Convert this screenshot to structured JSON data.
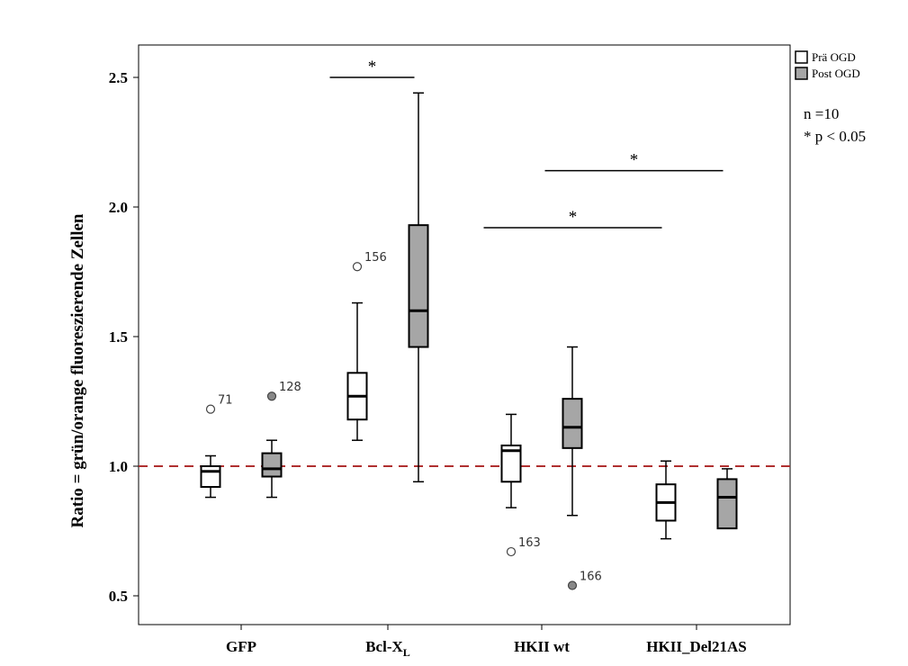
{
  "chart_data": {
    "type": "boxplot",
    "ylabel": "Ratio = grün/orange fluoreszierende Zellen",
    "y_ticks": [
      0.5,
      1.0,
      1.5,
      2.0,
      2.5
    ],
    "y_tick_labels": [
      "0.5",
      "1.0",
      "1.5",
      "2.0",
      "2.5"
    ],
    "ylim": [
      0.4,
      2.62
    ],
    "reference_line": {
      "y": 1.0,
      "color": "#b03030",
      "style": "dashed"
    },
    "categories": [
      {
        "label": "GFP",
        "subscript": ""
      },
      {
        "label": "Bcl-X",
        "subscript": "L"
      },
      {
        "label": "HKII wt",
        "subscript": ""
      },
      {
        "label": "HKII_Del21AS",
        "subscript": ""
      }
    ],
    "series": [
      {
        "name": "Prä OGD",
        "color": "#ffffff"
      },
      {
        "name": "Post OGD",
        "color": "#a6a6a6"
      }
    ],
    "boxes": [
      {
        "category": 0,
        "series": 0,
        "whisker_low": 0.88,
        "q1": 0.92,
        "median": 0.98,
        "q3": 1.0,
        "whisker_high": 1.04,
        "outliers": [
          {
            "value": 1.22,
            "label": "71"
          }
        ]
      },
      {
        "category": 0,
        "series": 1,
        "whisker_low": 0.88,
        "q1": 0.96,
        "median": 0.99,
        "q3": 1.05,
        "whisker_high": 1.1,
        "outliers": [
          {
            "value": 1.27,
            "label": "128"
          }
        ]
      },
      {
        "category": 1,
        "series": 0,
        "whisker_low": 1.1,
        "q1": 1.18,
        "median": 1.27,
        "q3": 1.36,
        "whisker_high": 1.63,
        "outliers": [
          {
            "value": 1.77,
            "label": "156"
          }
        ]
      },
      {
        "category": 1,
        "series": 1,
        "whisker_low": 0.94,
        "q1": 1.46,
        "median": 1.6,
        "q3": 1.93,
        "whisker_high": 2.44,
        "outliers": []
      },
      {
        "category": 2,
        "series": 0,
        "whisker_low": 0.84,
        "q1": 0.94,
        "median": 1.06,
        "q3": 1.08,
        "whisker_high": 1.2,
        "outliers": [
          {
            "value": 0.67,
            "label": "163"
          }
        ]
      },
      {
        "category": 2,
        "series": 1,
        "whisker_low": 0.81,
        "q1": 1.07,
        "median": 1.15,
        "q3": 1.26,
        "whisker_high": 1.46,
        "outliers": [
          {
            "value": 0.54,
            "label": "166"
          }
        ]
      },
      {
        "category": 3,
        "series": 0,
        "whisker_low": 0.72,
        "q1": 0.79,
        "median": 0.86,
        "q3": 0.93,
        "whisker_high": 1.02,
        "outliers": []
      },
      {
        "category": 3,
        "series": 1,
        "whisker_low": 0.76,
        "q1": 0.76,
        "median": 0.88,
        "q3": 0.95,
        "whisker_high": 0.99,
        "outliers": []
      }
    ],
    "significance": [
      {
        "from": {
          "category": 1,
          "series": 0
        },
        "to": {
          "category": 1,
          "series": 1
        },
        "y": 2.5,
        "label": "*"
      },
      {
        "from": {
          "category": 2,
          "series": 0
        },
        "to": {
          "category": 3,
          "series": 0
        },
        "y": 1.92,
        "label": "*"
      },
      {
        "from": {
          "category": 2,
          "series": 1
        },
        "to": {
          "category": 3,
          "series": 1
        },
        "y": 2.14,
        "label": "*"
      }
    ],
    "legend": {
      "placement": "top-right-outside"
    },
    "annotations": [
      "n =10",
      "* p < 0.05"
    ]
  }
}
